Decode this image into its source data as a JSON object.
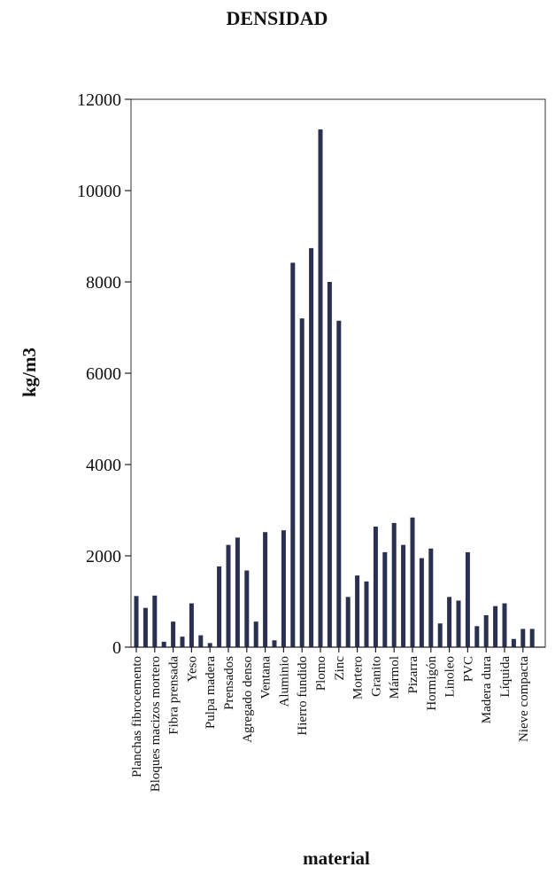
{
  "chart_data": {
    "type": "bar",
    "title": "DENSIDAD",
    "xlabel": "material",
    "ylabel": "kg/m3",
    "ylim": [
      0,
      12000
    ],
    "yticks": [
      0,
      2000,
      4000,
      6000,
      8000,
      10000,
      12000
    ],
    "grid": false,
    "bar_color": "#2a3050",
    "categories": [
      "Planchas fibrocemento",
      "",
      "Bloques macizos mortero",
      "",
      "Fibra prensada",
      "",
      "Yeso",
      "",
      "Pulpa madera",
      "",
      "Prensados",
      "",
      "Agregado denso",
      "",
      "Ventana",
      "",
      "Aluminio",
      "",
      "Hierro fundido",
      "",
      "Plomo",
      "",
      "Zinc",
      "",
      "Mortero",
      "",
      "Granito",
      "",
      "Mármol",
      "",
      "Pizarra",
      "",
      "Hormigón",
      "",
      "Linoleo",
      "",
      "PVC",
      "",
      "Madera dura",
      "",
      "Líquida",
      "",
      "Nieve compacta",
      ""
    ],
    "values": [
      1120,
      860,
      1130,
      120,
      560,
      230,
      960,
      260,
      90,
      1770,
      2240,
      2400,
      1680,
      560,
      2520,
      150,
      2560,
      8420,
      7200,
      8740,
      11340,
      8000,
      7150,
      1100,
      1570,
      1440,
      2640,
      2080,
      2720,
      2240,
      2840,
      1950,
      2160,
      520,
      1100,
      1020,
      2080,
      460,
      700,
      900,
      960,
      180,
      400,
      400
    ]
  }
}
